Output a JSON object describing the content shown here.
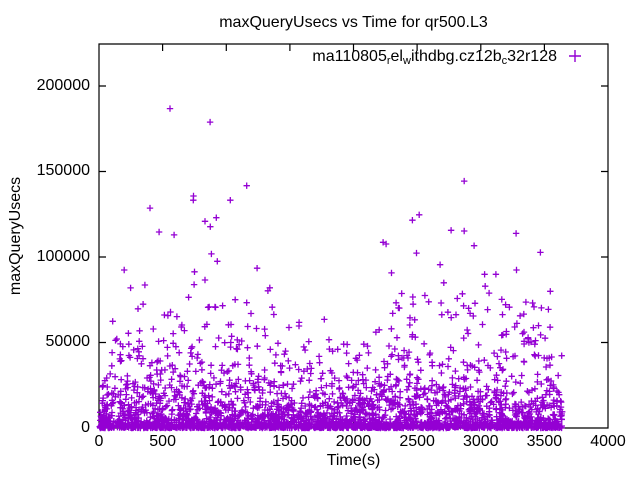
{
  "chart_data": {
    "type": "scatter",
    "title": "maxQueryUsecs vs Time for qr500.L3",
    "xlabel": "Time(s)",
    "ylabel": "maxQueryUsecs",
    "xlim": [
      0,
      4000
    ],
    "ylim": [
      0,
      224560
    ],
    "xticks": [
      0,
      500,
      1000,
      1500,
      2000,
      2500,
      3000,
      3500,
      4000
    ],
    "xtick_labels": [
      "0",
      "500",
      "1000",
      "1500",
      "2000",
      "2500",
      "3000",
      "3500",
      "4000"
    ],
    "yticks": [
      0,
      50000,
      100000,
      150000,
      200000
    ],
    "ytick_labels": [
      "0",
      "50000",
      "100000",
      "150000",
      "200000"
    ],
    "grid": false,
    "legend_position": "top-right-inside",
    "axis_color": "#000000",
    "series": [
      {
        "name": "ma110805_rel_withdbg.cz12b_c32r128",
        "label_segments": [
          {
            "text": "ma110805"
          },
          {
            "text": "r",
            "subscript": true
          },
          {
            "text": "el"
          },
          {
            "text": "w",
            "subscript": true
          },
          {
            "text": "ithdbg.cz12b"
          },
          {
            "text": "c",
            "subscript": true
          },
          {
            "text": "32r128"
          }
        ],
        "color": "#9400d3",
        "marker": "plus",
        "points_high": [
          [
            401,
            128600
          ],
          [
            472,
            114600
          ],
          [
            558,
            186800
          ],
          [
            590,
            112900
          ],
          [
            741,
            133200
          ],
          [
            743,
            135700
          ],
          [
            833,
            120900
          ],
          [
            873,
            178900
          ],
          [
            875,
            117700
          ],
          [
            883,
            101800
          ],
          [
            922,
            123000
          ],
          [
            1032,
            133200
          ],
          [
            1161,
            141700
          ],
          [
            2233,
            108600
          ],
          [
            2256,
            107600
          ],
          [
            2463,
            121500
          ],
          [
            2495,
            102300
          ],
          [
            2516,
            124700
          ],
          [
            2767,
            115600
          ],
          [
            2870,
            144400
          ],
          [
            2870,
            115200
          ],
          [
            2948,
            106600
          ],
          [
            3278,
            113800
          ],
          [
            3469,
            102700
          ]
        ],
        "cloud": {
          "seed": 20117,
          "count": 3000,
          "t_min": 5,
          "t_max": 3640,
          "band_frac": 0.3,
          "band_max": 4200,
          "exp_mean": 13000,
          "cap": 60000,
          "mid_frac": 0.06,
          "mid_min": 34000,
          "mid_span": 40000,
          "high_frac": 0.012,
          "high_min": 68000,
          "high_span": 32000,
          "dip_start": 1440,
          "dip_end": 2260,
          "dip_factor": 0.7,
          "ramp_t": 130,
          "ramp_base": 0.25
        }
      }
    ]
  }
}
